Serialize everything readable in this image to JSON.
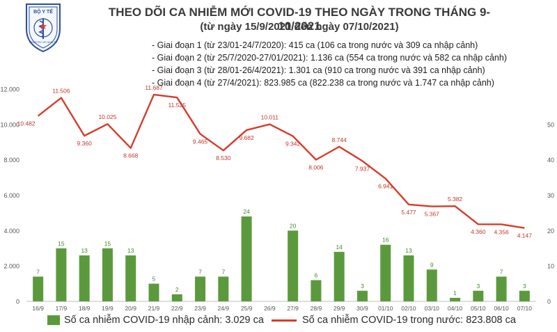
{
  "header": {
    "title": "THEO DÕI CA NHIỄM MỚI COVID-19 THEO NGÀY TRONG THÁNG 9-10/2021",
    "subtitle": "(từ ngày 15/9/2021 đến ngày 07/10/2021)",
    "notes": [
      "- Giai đoạn 1 (từ 23/01-24/7/2020): 415 ca (106 ca trong nước và 309 ca nhập cảnh)",
      "- Giai đoạn 2 (từ 25/7/2020-27/01/2021): 1.136 ca (554 ca trong nước và 582 ca nhập cảnh)",
      "- Giai đoạn 3 (từ 28/01-26/4/2021): 1.301 ca (910 ca trong nước và 391 ca nhập cảnh)",
      "- Giai đoạn 4 (từ 27/4/2021): 823.985 ca (822.238 ca trong nước và 1.747 ca nhập cảnh)"
    ]
  },
  "logo": {
    "text": "BỘ Y TẾ",
    "bottom_text": "MINISTRY OF HEALTH"
  },
  "colors": {
    "bar": "#5b9a3c",
    "line": "#d63c2a",
    "bar_label": "#3c8a2a",
    "line_label": "#c0392b"
  },
  "chart_data": {
    "type": "bar+line",
    "categories": [
      "16/9",
      "17/9",
      "18/9",
      "19/9",
      "20/9",
      "21/9",
      "22/9",
      "23/9",
      "24/9",
      "25/9",
      "26/9",
      "27/9",
      "28/9",
      "29/9",
      "30/9",
      "01/10",
      "02/10",
      "03/10",
      "04/10",
      "05/10",
      "06/10",
      "07/10"
    ],
    "bar_series": {
      "name": "Số ca nhiễm COVID-19 nhập cảnh: 3.029 ca",
      "axis": "right",
      "values": [
        7,
        15,
        13,
        15,
        13,
        5,
        2,
        7,
        7,
        24,
        0,
        20,
        6,
        14,
        3,
        16,
        13,
        9,
        1,
        3,
        7,
        3
      ],
      "labels": [
        "7",
        "15",
        "13",
        "15",
        "13",
        "5",
        "2",
        "7",
        "7",
        "24",
        "",
        "20",
        "6",
        "14",
        "3",
        "16",
        "13",
        "9",
        "1",
        "3",
        "7",
        "3"
      ]
    },
    "line_series": {
      "name": "Số ca nhiễm COVID-19 trong nước: 823.808 ca",
      "axis": "left",
      "values": [
        10482,
        11506,
        9360,
        10025,
        8668,
        11687,
        11525,
        9465,
        8530,
        9682,
        10011,
        9342,
        8006,
        8744,
        7937,
        6941,
        5477,
        5367,
        5382,
        4360,
        4356,
        4147
      ],
      "labels": [
        "10.482",
        "11.506",
        "9.360",
        "10.025",
        "8.668",
        "11.687",
        "11.525",
        "9.465",
        "8.530",
        "9.682",
        "10.011",
        "9.342",
        "8.006",
        "8.744",
        "7.937",
        "6.941",
        "5.477",
        "5.367",
        "5.382",
        "4.360",
        "4.356",
        "4.147"
      ]
    },
    "y_left": {
      "ylim": [
        0,
        12000
      ],
      "ticks": [
        "0",
        "2.000",
        "4.000",
        "6.000",
        "8.000",
        "10.000",
        "12.000"
      ]
    },
    "y_right": {
      "ylim": [
        0,
        60
      ],
      "ticks": [
        "0",
        "10",
        "20",
        "30",
        "40",
        "50"
      ]
    },
    "grid": false,
    "legend_position": "bottom"
  }
}
